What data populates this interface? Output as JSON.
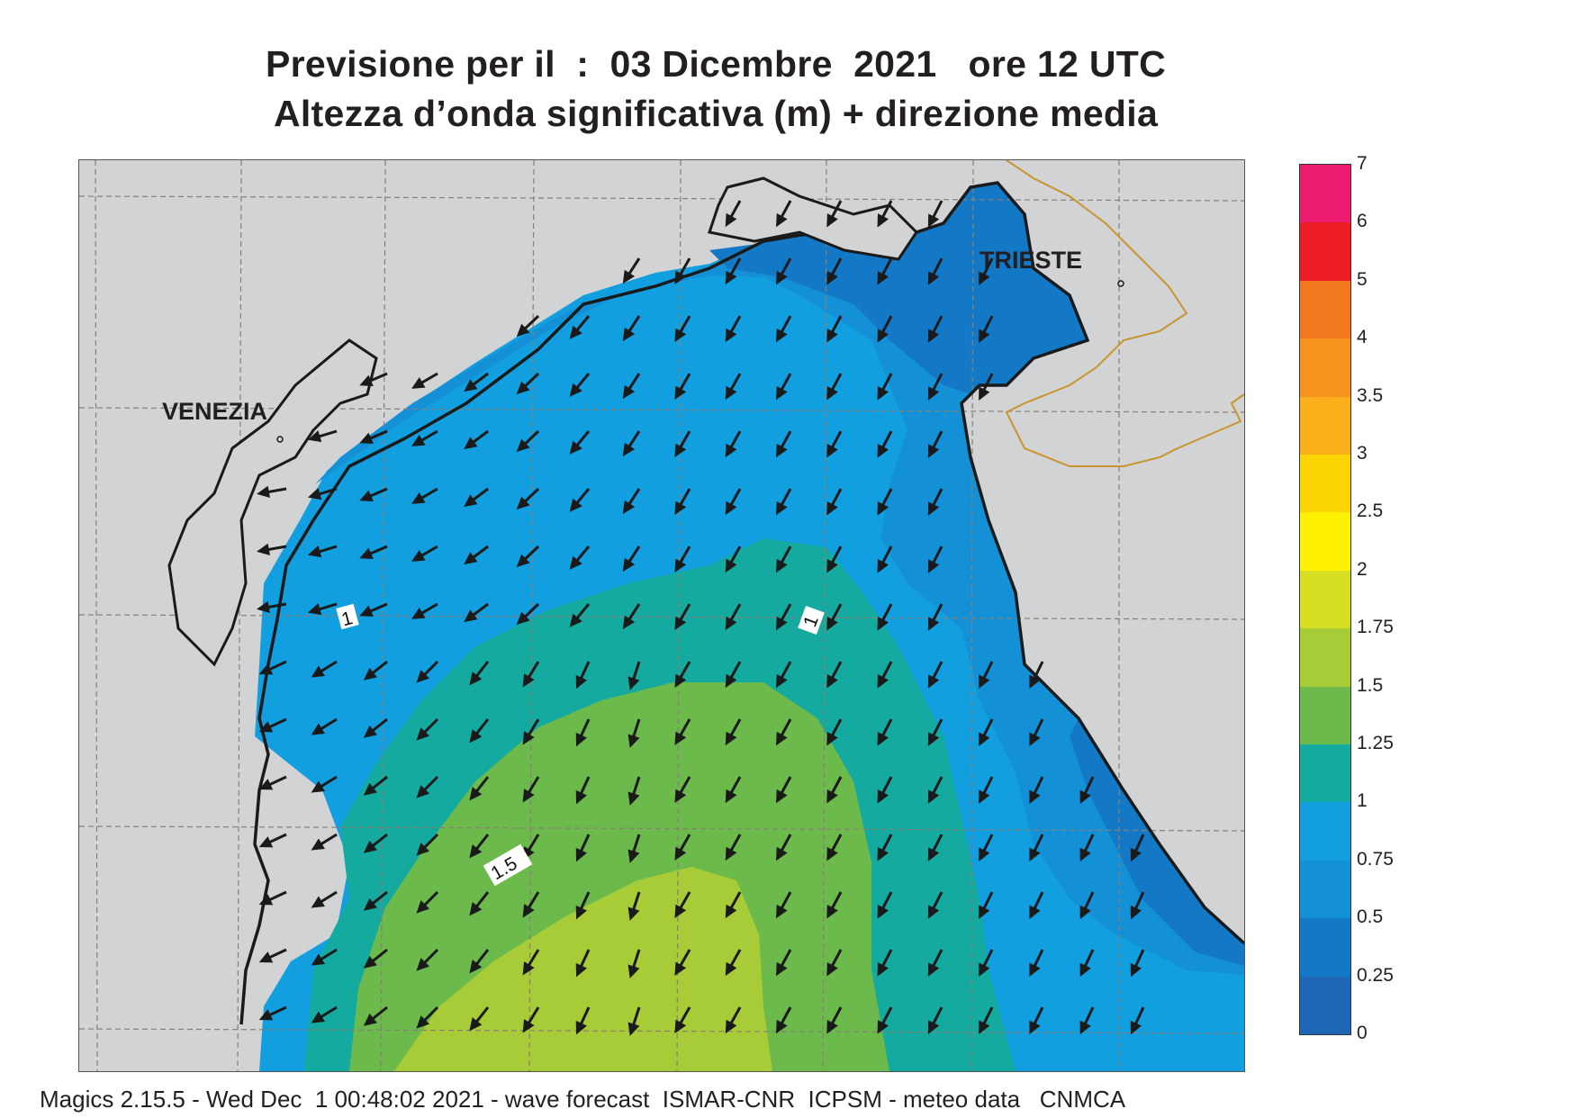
{
  "header": {
    "title_line1": "Previsione per il  :  03 Dicembre  2021   ore 12 UTC",
    "title_line2": "Altezza d’onda significativa (m) + direzione media"
  },
  "map": {
    "cities": {
      "venezia": "VENEZIA",
      "trieste": "TRIESTE"
    },
    "contour_labels": {
      "left_1": "1",
      "right_1": "1",
      "mid_15": "1.5"
    },
    "colors": {
      "land": "#d2d3d5",
      "band_0_025": "#1e66b6",
      "band_025_05": "#1379c6",
      "band_05_075": "#1490d6",
      "band_075_1": "#129fe0",
      "band_1_125": "#14aaa0",
      "band_125_15": "#6cba4c",
      "band_15_175": "#a8cc38",
      "coast": "#1a1a1a",
      "border": "#c8952c",
      "arrow": "#1a1a1a"
    },
    "mean_direction": "towards south-west / west"
  },
  "legend": {
    "ticks": [
      "7",
      "6",
      "5",
      "4",
      "3.5",
      "3",
      "2.5",
      "2",
      "1.75",
      "1.5",
      "1.25",
      "1",
      "0.75",
      "0.5",
      "0.25",
      "0"
    ],
    "colors": [
      "#ec1c70",
      "#ec1c24",
      "#f47a20",
      "#f7941d",
      "#fbb01b",
      "#fdd500",
      "#fff200",
      "#d7df23",
      "#a8cc38",
      "#6cba4c",
      "#14aaa0",
      "#129fe0",
      "#1490d6",
      "#1379c6",
      "#1e66b6"
    ]
  },
  "footer": {
    "text": "Magics 2.15.5 - Wed Dec  1 00:48:02 2021 - wave forecast  ISMAR-CNR  ICPSM - meteo data   CNMCA"
  }
}
